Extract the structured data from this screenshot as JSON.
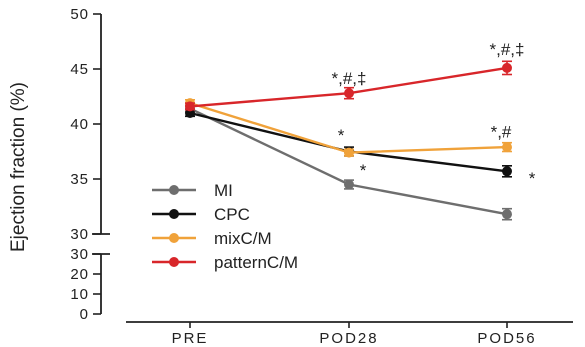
{
  "chart_data": {
    "type": "line",
    "ylabel": "Ejection fraction (%)",
    "categories": [
      "PRE",
      "POD28",
      "POD56"
    ],
    "upper_axis": {
      "ylim": [
        30,
        50
      ],
      "ticks": [
        "30",
        "35",
        "40",
        "45",
        "50"
      ]
    },
    "lower_axis": {
      "ylim": [
        0,
        30
      ],
      "ticks": [
        "0",
        "10",
        "20",
        "30"
      ]
    },
    "series": [
      {
        "name": "MI",
        "color": "#6e6e6e",
        "values": [
          41.4,
          34.5,
          31.8
        ],
        "errors": [
          0.3,
          0.4,
          0.5
        ]
      },
      {
        "name": "CPC",
        "color": "#111111",
        "values": [
          41.0,
          37.5,
          35.7
        ],
        "errors": [
          0.3,
          0.4,
          0.5
        ]
      },
      {
        "name": "mixC/M",
        "color": "#f0a23a",
        "values": [
          41.9,
          37.4,
          37.9
        ],
        "errors": [
          0.3,
          0.3,
          0.4
        ]
      },
      {
        "name": "patternC/M",
        "color": "#d8262a",
        "values": [
          41.6,
          42.8,
          45.1
        ],
        "errors": [
          0.3,
          0.5,
          0.6
        ]
      }
    ],
    "annotations": [
      {
        "text": "*,#,‡",
        "category": "POD28",
        "y": 44.2,
        "dx": 0
      },
      {
        "text": "*,#,‡",
        "category": "POD56",
        "y": 46.8,
        "dx": 0
      },
      {
        "text": "*",
        "category": "POD28",
        "y": 39.0,
        "dx": -8
      },
      {
        "text": "*",
        "category": "POD28",
        "y": 35.8,
        "dx": 14
      },
      {
        "text": "*,#",
        "category": "POD56",
        "y": 39.3,
        "dx": -6
      },
      {
        "text": "*",
        "category": "POD56",
        "y": 35.1,
        "dx": 25
      }
    ],
    "legend_position": "bottom-left"
  }
}
